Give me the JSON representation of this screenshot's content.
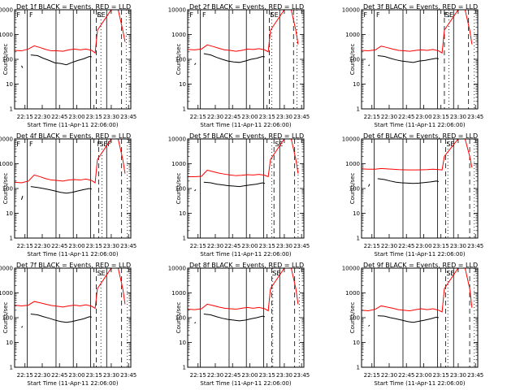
{
  "figure": {
    "xlabel": "Start Time (11-Apr-11 22:06:00)",
    "ylabel": "Counts/sec",
    "x_tick_labels": [
      "22:15",
      "22:30",
      "22:45",
      "23:00",
      "23:15",
      "23:30",
      "23:45"
    ],
    "y_tick_labels": [
      "1",
      "10",
      "100",
      "1000",
      "10000"
    ]
  },
  "chart_data": [
    {
      "type": "line",
      "title": "Det 1f BLACK = Events, RED = LLD",
      "xlabel": "Start Time (11-Apr-11 22:06:00)",
      "ylabel": "Counts/sec",
      "x_ticks": [
        "22:15",
        "22:30",
        "22:45",
        "23:00",
        "23:15",
        "23:30",
        "23:45"
      ],
      "y_scale": "log",
      "ylim": [
        1,
        10000
      ],
      "series": [
        {
          "color": "#000000",
          "x": [
            "22:12",
            "22:13"
          ],
          "y": [
            55,
            45
          ]
        },
        {
          "color": "#000000",
          "x": [
            "22:20",
            "22:26",
            "22:31",
            "22:36",
            "22:41",
            "22:46",
            "22:51",
            "22:56",
            "23:01",
            "23:06",
            "23:11",
            "23:13"
          ],
          "y": [
            150,
            140,
            110,
            90,
            72,
            68,
            60,
            75,
            90,
            105,
            130,
            125
          ]
        },
        {
          "color": "#ff0000",
          "x": [
            "22:06",
            "22:12",
            "22:18",
            "22:23",
            "22:28",
            "22:33",
            "22:38",
            "22:43",
            "22:48",
            "22:53",
            "22:58",
            "23:03",
            "23:08",
            "23:13",
            "23:16",
            "23:18",
            "23:30",
            "23:36",
            "23:40",
            "23:42"
          ],
          "y": [
            230,
            220,
            260,
            350,
            300,
            250,
            220,
            220,
            210,
            240,
            260,
            240,
            260,
            230,
            180,
            1500,
            10000,
            10000,
            1500,
            500
          ]
        }
      ],
      "annotations": [
        "F",
        "F",
        "F",
        "SE"
      ]
    },
    {
      "type": "line",
      "title": "Det 2f BLACK = Events, RED = LLD",
      "xlabel": "Start Time (11-Apr-11 22:06:00)",
      "ylabel": "Counts/sec",
      "x_ticks": [
        "22:15",
        "22:30",
        "22:45",
        "23:00",
        "23:15",
        "23:30",
        "23:45"
      ],
      "y_scale": "log",
      "ylim": [
        1,
        10000
      ],
      "series": [
        {
          "color": "#000000",
          "x": [
            "22:12",
            "22:13"
          ],
          "y": [
            60,
            70
          ]
        },
        {
          "color": "#000000",
          "x": [
            "22:20",
            "22:26",
            "22:31",
            "22:36",
            "22:41",
            "22:46",
            "22:51",
            "22:56",
            "23:01",
            "23:06",
            "23:11",
            "23:13"
          ],
          "y": [
            170,
            150,
            120,
            100,
            85,
            78,
            75,
            85,
            100,
            110,
            130,
            125
          ]
        },
        {
          "color": "#ff0000",
          "x": [
            "22:06",
            "22:12",
            "22:18",
            "22:23",
            "22:28",
            "22:33",
            "22:38",
            "22:43",
            "22:48",
            "22:53",
            "22:58",
            "23:03",
            "23:08",
            "23:13",
            "23:16",
            "23:18",
            "23:30",
            "23:36",
            "23:40",
            "23:42"
          ],
          "y": [
            250,
            240,
            260,
            380,
            330,
            280,
            240,
            230,
            210,
            230,
            260,
            250,
            270,
            240,
            200,
            1500,
            10000,
            10000,
            1500,
            400
          ]
        }
      ],
      "annotations": [
        "F",
        "F",
        "F",
        "SE"
      ]
    },
    {
      "type": "line",
      "title": "Det 3f BLACK = Events, RED = LLD",
      "xlabel": "Start Time (11-Apr-11 22:06:00)",
      "ylabel": "Counts/sec",
      "x_ticks": [
        "22:15",
        "22:30",
        "22:45",
        "23:00",
        "23:15",
        "23:30",
        "23:45"
      ],
      "y_scale": "log",
      "ylim": [
        1,
        10000
      ],
      "series": [
        {
          "color": "#000000",
          "x": [
            "22:12",
            "22:13"
          ],
          "y": [
            55,
            60
          ]
        },
        {
          "color": "#000000",
          "x": [
            "22:20",
            "22:26",
            "22:31",
            "22:36",
            "22:41",
            "22:46",
            "22:51",
            "22:56",
            "23:01",
            "23:06",
            "23:11",
            "23:13"
          ],
          "y": [
            140,
            130,
            110,
            95,
            85,
            80,
            75,
            85,
            90,
            100,
            110,
            105
          ]
        },
        {
          "color": "#ff0000",
          "x": [
            "22:06",
            "22:12",
            "22:18",
            "22:23",
            "22:28",
            "22:33",
            "22:38",
            "22:43",
            "22:48",
            "22:53",
            "22:58",
            "23:03",
            "23:08",
            "23:13",
            "23:16",
            "23:18",
            "23:30",
            "23:36",
            "23:40",
            "23:42"
          ],
          "y": [
            230,
            220,
            240,
            340,
            300,
            260,
            230,
            220,
            210,
            230,
            240,
            230,
            250,
            220,
            180,
            1500,
            10000,
            10000,
            1500,
            400
          ]
        }
      ],
      "annotations": [
        "F",
        "F",
        "F",
        "SE"
      ]
    },
    {
      "type": "line",
      "title": "Det 4f BLACK = Events, RED = LLD",
      "xlabel": "Start Time (11-Apr-11 22:06:00)",
      "ylabel": "Counts/sec",
      "x_ticks": [
        "22:15",
        "22:30",
        "22:45",
        "23:00",
        "23:15",
        "23:30",
        "23:45"
      ],
      "y_scale": "log",
      "ylim": [
        1,
        10000
      ],
      "series": [
        {
          "color": "#000000",
          "x": [
            "22:12",
            "22:13"
          ],
          "y": [
            35,
            50
          ]
        },
        {
          "color": "#000000",
          "x": [
            "22:20",
            "22:26",
            "22:31",
            "22:36",
            "22:41",
            "22:46",
            "22:51",
            "22:56",
            "23:01",
            "23:06",
            "23:11",
            "23:13"
          ],
          "y": [
            120,
            110,
            100,
            90,
            80,
            70,
            65,
            70,
            80,
            90,
            100,
            95
          ]
        },
        {
          "color": "#ff0000",
          "x": [
            "22:06",
            "22:12",
            "22:18",
            "22:23",
            "22:28",
            "22:33",
            "22:38",
            "22:43",
            "22:48",
            "22:53",
            "22:58",
            "23:03",
            "23:08",
            "23:13",
            "23:16",
            "23:18",
            "23:30",
            "23:36",
            "23:40",
            "23:42"
          ],
          "y": [
            180,
            170,
            200,
            350,
            300,
            250,
            220,
            210,
            200,
            220,
            230,
            220,
            240,
            210,
            170,
            1500,
            10000,
            10000,
            1500,
            400
          ]
        }
      ],
      "annotations": [
        "F",
        "F",
        "F",
        "F",
        "SE"
      ]
    },
    {
      "type": "line",
      "title": "Det 5f BLACK = Events, RED = LLD",
      "xlabel": "Start Time (11-Apr-11 22:06:00)",
      "ylabel": "Counts/sec",
      "x_ticks": [
        "22:15",
        "22:30",
        "22:45",
        "23:00",
        "23:15",
        "23:30",
        "23:45"
      ],
      "y_scale": "log",
      "ylim": [
        1,
        10000
      ],
      "series": [
        {
          "color": "#000000",
          "x": [
            "22:12",
            "22:13"
          ],
          "y": [
            80,
            90
          ]
        },
        {
          "color": "#000000",
          "x": [
            "22:20",
            "22:26",
            "22:31",
            "22:36",
            "22:41",
            "22:46",
            "22:51",
            "22:56",
            "23:01",
            "23:06",
            "23:11",
            "23:13"
          ],
          "y": [
            180,
            170,
            150,
            140,
            130,
            125,
            120,
            130,
            140,
            150,
            170,
            160
          ]
        },
        {
          "color": "#ff0000",
          "x": [
            "22:06",
            "22:12",
            "22:18",
            "22:23",
            "22:28",
            "22:33",
            "22:38",
            "22:43",
            "22:48",
            "22:53",
            "22:58",
            "23:03",
            "23:08",
            "23:13",
            "23:16",
            "23:18",
            "23:30",
            "23:36",
            "23:40",
            "23:42"
          ],
          "y": [
            300,
            300,
            310,
            550,
            480,
            420,
            380,
            350,
            330,
            340,
            360,
            350,
            370,
            340,
            300,
            1500,
            10000,
            10000,
            1500,
            400
          ]
        }
      ],
      "annotations": [
        "SE"
      ]
    },
    {
      "type": "line",
      "title": "Det 6f BLACK = Events, RED = LLD",
      "xlabel": "Start Time (11-Apr-11 22:06:00)",
      "ylabel": "Counts/sec",
      "x_ticks": [
        "22:15",
        "22:30",
        "22:45",
        "23:00",
        "23:15",
        "23:30",
        "23:45"
      ],
      "y_scale": "log",
      "ylim": [
        1,
        10000
      ],
      "series": [
        {
          "color": "#000000",
          "x": [
            "22:12",
            "22:13"
          ],
          "y": [
            120,
            150
          ]
        },
        {
          "color": "#000000",
          "x": [
            "22:20",
            "22:26",
            "22:31",
            "22:36",
            "22:41",
            "22:46",
            "22:51",
            "22:56",
            "23:01",
            "23:06",
            "23:11",
            "23:13"
          ],
          "y": [
            250,
            230,
            200,
            180,
            170,
            165,
            160,
            165,
            175,
            185,
            200,
            190
          ]
        },
        {
          "color": "#ff0000",
          "x": [
            "22:06",
            "22:12",
            "22:18",
            "22:23",
            "22:28",
            "22:33",
            "22:38",
            "22:43",
            "22:48",
            "22:53",
            "22:58",
            "23:03",
            "23:08",
            "23:13",
            "23:16",
            "23:18",
            "23:30",
            "23:36",
            "23:40",
            "23:42"
          ],
          "y": [
            620,
            600,
            600,
            640,
            620,
            600,
            580,
            570,
            560,
            560,
            570,
            580,
            600,
            580,
            560,
            2000,
            10000,
            10000,
            2000,
            700
          ]
        }
      ],
      "annotations": [
        "SE"
      ]
    },
    {
      "type": "line",
      "title": "Det 7f BLACK = Events, RED = LLD",
      "xlabel": "Start Time (11-Apr-11 22:06:00)",
      "ylabel": "Counts/sec",
      "x_ticks": [
        "22:15",
        "22:30",
        "22:45",
        "23:00",
        "23:15",
        "23:30",
        "23:45"
      ],
      "y_scale": "log",
      "ylim": [
        1,
        10000
      ],
      "series": [
        {
          "color": "#000000",
          "x": [
            "22:12",
            "22:13"
          ],
          "y": [
            40,
            45
          ]
        },
        {
          "color": "#000000",
          "x": [
            "22:20",
            "22:26",
            "22:31",
            "22:36",
            "22:41",
            "22:46",
            "22:51",
            "22:56",
            "23:01",
            "23:06",
            "23:11",
            "23:13"
          ],
          "y": [
            140,
            130,
            110,
            95,
            80,
            70,
            65,
            70,
            80,
            90,
            110,
            105
          ]
        },
        {
          "color": "#ff0000",
          "x": [
            "22:06",
            "22:12",
            "22:18",
            "22:23",
            "22:28",
            "22:33",
            "22:38",
            "22:43",
            "22:48",
            "22:53",
            "22:58",
            "23:03",
            "23:08",
            "23:13",
            "23:16",
            "23:18",
            "23:30",
            "23:36",
            "23:40",
            "23:42"
          ],
          "y": [
            320,
            300,
            320,
            450,
            400,
            350,
            310,
            290,
            270,
            300,
            320,
            300,
            330,
            290,
            240,
            1500,
            10000,
            10000,
            1500,
            350
          ]
        }
      ],
      "annotations": [
        "SE"
      ]
    },
    {
      "type": "line",
      "title": "Det 8f BLACK = Events, RED = LLD",
      "xlabel": "Start Time (11-Apr-11 22:06:00)",
      "ylabel": "Counts/sec",
      "x_ticks": [
        "22:15",
        "22:30",
        "22:45",
        "23:00",
        "23:15",
        "23:30",
        "23:45"
      ],
      "y_scale": "log",
      "ylim": [
        1,
        10000
      ],
      "series": [
        {
          "color": "#000000",
          "x": [
            "22:12",
            "22:13"
          ],
          "y": [
            60,
            65
          ]
        },
        {
          "color": "#000000",
          "x": [
            "22:20",
            "22:26",
            "22:31",
            "22:36",
            "22:41",
            "22:46",
            "22:51",
            "22:56",
            "23:01",
            "23:06",
            "23:11",
            "23:13"
          ],
          "y": [
            140,
            130,
            110,
            95,
            85,
            80,
            75,
            80,
            90,
            100,
            115,
            110
          ]
        },
        {
          "color": "#ff0000",
          "x": [
            "22:06",
            "22:12",
            "22:18",
            "22:23",
            "22:28",
            "22:33",
            "22:38",
            "22:43",
            "22:48",
            "22:53",
            "22:58",
            "23:03",
            "23:08",
            "23:13",
            "23:16",
            "23:18",
            "23:30",
            "23:36",
            "23:40",
            "23:42"
          ],
          "y": [
            220,
            210,
            230,
            350,
            310,
            270,
            240,
            230,
            220,
            240,
            260,
            240,
            260,
            230,
            190,
            1500,
            10000,
            10000,
            1500,
            350
          ]
        }
      ],
      "annotations": [
        "SE"
      ]
    },
    {
      "type": "line",
      "title": "Det 9f BLACK = Events, RED = LLD",
      "xlabel": "Start Time (11-Apr-11 22:06:00)",
      "ylabel": "Counts/sec",
      "x_ticks": [
        "22:15",
        "22:30",
        "22:45",
        "23:00",
        "23:15",
        "23:30",
        "23:45"
      ],
      "y_scale": "log",
      "ylim": [
        1,
        10000
      ],
      "series": [
        {
          "color": "#000000",
          "x": [
            "22:12",
            "22:13"
          ],
          "y": [
            45,
            50
          ]
        },
        {
          "color": "#000000",
          "x": [
            "22:20",
            "22:26",
            "22:31",
            "22:36",
            "22:41",
            "22:46",
            "22:51",
            "22:56",
            "23:01",
            "23:06",
            "23:11",
            "23:13"
          ],
          "y": [
            120,
            115,
            100,
            90,
            80,
            70,
            65,
            72,
            80,
            90,
            105,
            100
          ]
        },
        {
          "color": "#ff0000",
          "x": [
            "22:06",
            "22:12",
            "22:18",
            "22:23",
            "22:28",
            "22:33",
            "22:38",
            "22:43",
            "22:48",
            "22:53",
            "22:58",
            "23:03",
            "23:08",
            "23:13",
            "23:16",
            "23:18",
            "23:30",
            "23:36",
            "23:40",
            "23:42"
          ],
          "y": [
            200,
            190,
            220,
            300,
            270,
            240,
            210,
            200,
            190,
            210,
            230,
            210,
            230,
            200,
            170,
            1500,
            10000,
            10000,
            1500,
            250
          ]
        }
      ],
      "annotations": [
        "SE"
      ]
    }
  ]
}
